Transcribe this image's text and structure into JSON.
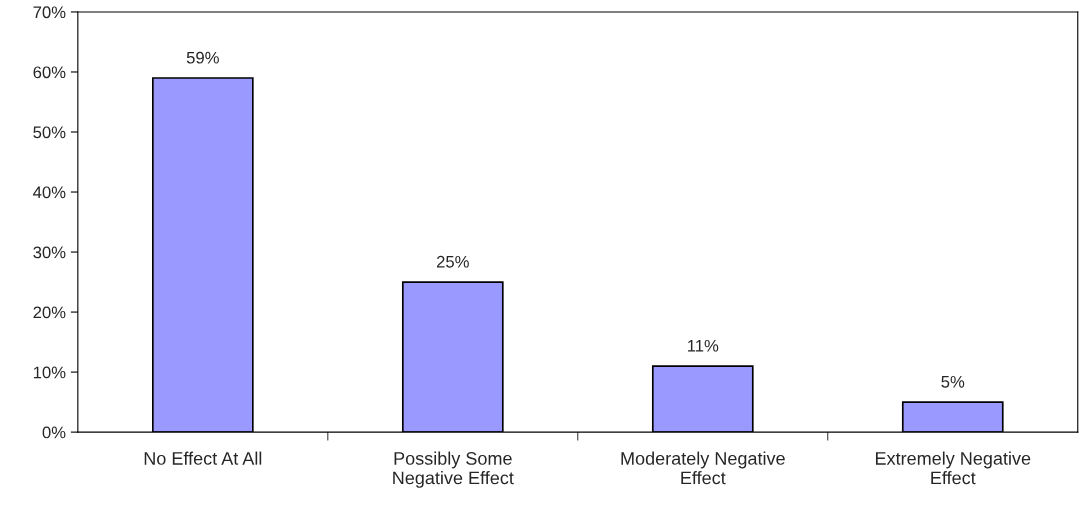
{
  "chart_data": {
    "type": "bar",
    "categories": [
      "No Effect At All",
      "Possibly Some\nNegative Effect",
      "Moderately Negative\nEffect",
      "Extremely Negative\nEffect"
    ],
    "values": [
      59,
      25,
      11,
      5
    ],
    "value_labels": [
      "59%",
      "25%",
      "11%",
      "5%"
    ],
    "color": "#9999ff",
    "ylim": [
      0,
      70
    ],
    "yticks": [
      {
        "value": 0,
        "label": "0%"
      },
      {
        "value": 10,
        "label": "10%"
      },
      {
        "value": 20,
        "label": "20%"
      },
      {
        "value": 30,
        "label": "30%"
      },
      {
        "value": 40,
        "label": "40%"
      },
      {
        "value": 50,
        "label": "50%"
      },
      {
        "value": 60,
        "label": "60%"
      },
      {
        "value": 70,
        "label": "70%"
      }
    ],
    "grid": false,
    "legend": false
  }
}
